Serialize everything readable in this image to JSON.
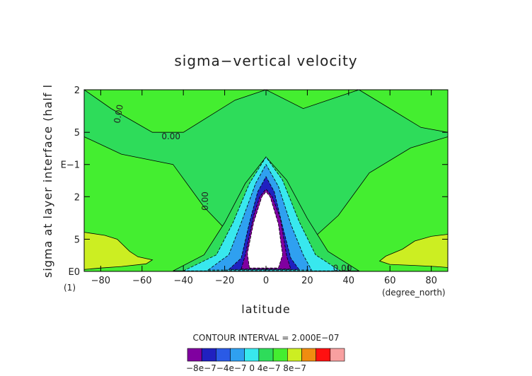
{
  "chart_data": {
    "type": "heatmap",
    "title": "sigma−vertical velocity",
    "xlabel": "latitude",
    "ylabel": "sigma at layer interface (half l",
    "x_unit_label": "(degree_north)",
    "y_exponent_label": "(1)",
    "x_ticks": [
      "−80",
      "−60",
      "−40",
      "−20",
      "0",
      "20",
      "40",
      "60",
      "80"
    ],
    "x_tick_values": [
      -80,
      -60,
      -40,
      -20,
      0,
      20,
      40,
      60,
      80
    ],
    "xlim": [
      -88,
      88
    ],
    "y_ticks": [
      "2",
      "5",
      "E−1",
      "2",
      "5",
      "E0"
    ],
    "y_tick_values": [
      0.02,
      0.05,
      0.1,
      0.2,
      0.5,
      1.0
    ],
    "ylim": [
      1.0,
      0.02
    ],
    "y_scale": "log",
    "contour_interval_label": "CONTOUR INTERVAL = 2.000E−07",
    "colorbar": {
      "colors": [
        "#8000a0",
        "#2020c0",
        "#2a5ae6",
        "#2fa0f0",
        "#38e8ee",
        "#2edc5a",
        "#44ee30",
        "#ccee22",
        "#f08c10",
        "#ff1010",
        "#f8a0a0"
      ],
      "tick_labels": [
        "−8e−7",
        "−4e−7",
        "0",
        "4e−7",
        "8e−7"
      ],
      "tick_label_text": "−8e−7−4e−7  0   4e−7  8e−7"
    },
    "contour_labels": [
      "0.00",
      "0.00",
      "0.00",
      "0.00"
    ],
    "regions": [
      {
        "level": "-1.2e-6 and below",
        "lat_range": [
          -8,
          8
        ],
        "sigma_range": [
          0.18,
          0.93
        ],
        "color": "#ffffff"
      },
      {
        "level": "-1.0e-6",
        "lat_range": [
          -12,
          12
        ],
        "sigma_range": [
          0.17,
          0.95
        ],
        "color": "#8000a0"
      },
      {
        "level": "-8e-7",
        "lat_range": [
          -18,
          16
        ],
        "sigma_range": [
          0.13,
          0.96
        ],
        "color": "#2020c0"
      },
      {
        "level": "-4e-7",
        "lat_range": [
          -28,
          22
        ],
        "sigma_range": [
          0.1,
          0.97
        ],
        "color": "#2fa0f0"
      },
      {
        "level": "-2e-7",
        "lat_range": [
          -40,
          36
        ],
        "sigma_range": [
          0.085,
          0.99
        ],
        "color": "#38e8ee"
      },
      {
        "level": "0 to 2e-7",
        "lat_range": [
          -88,
          88
        ],
        "sigma_range": [
          0.02,
          1.0
        ],
        "color": "#44ee30"
      },
      {
        "level": "4e-7",
        "lat_range": [
          -88,
          -55
        ],
        "sigma_range": [
          0.43,
          0.97
        ],
        "color": "#ccee22"
      },
      {
        "level": "4e-7",
        "lat_range": [
          55,
          88
        ],
        "sigma_range": [
          0.45,
          0.97
        ],
        "color": "#ccee22"
      }
    ],
    "grid": false,
    "legend": "colorbar bottom-center"
  },
  "colors": {
    "background": "#ffffff",
    "field_base": "#44ee30",
    "field_alt": "#2edc5a",
    "frame": "#000000"
  }
}
